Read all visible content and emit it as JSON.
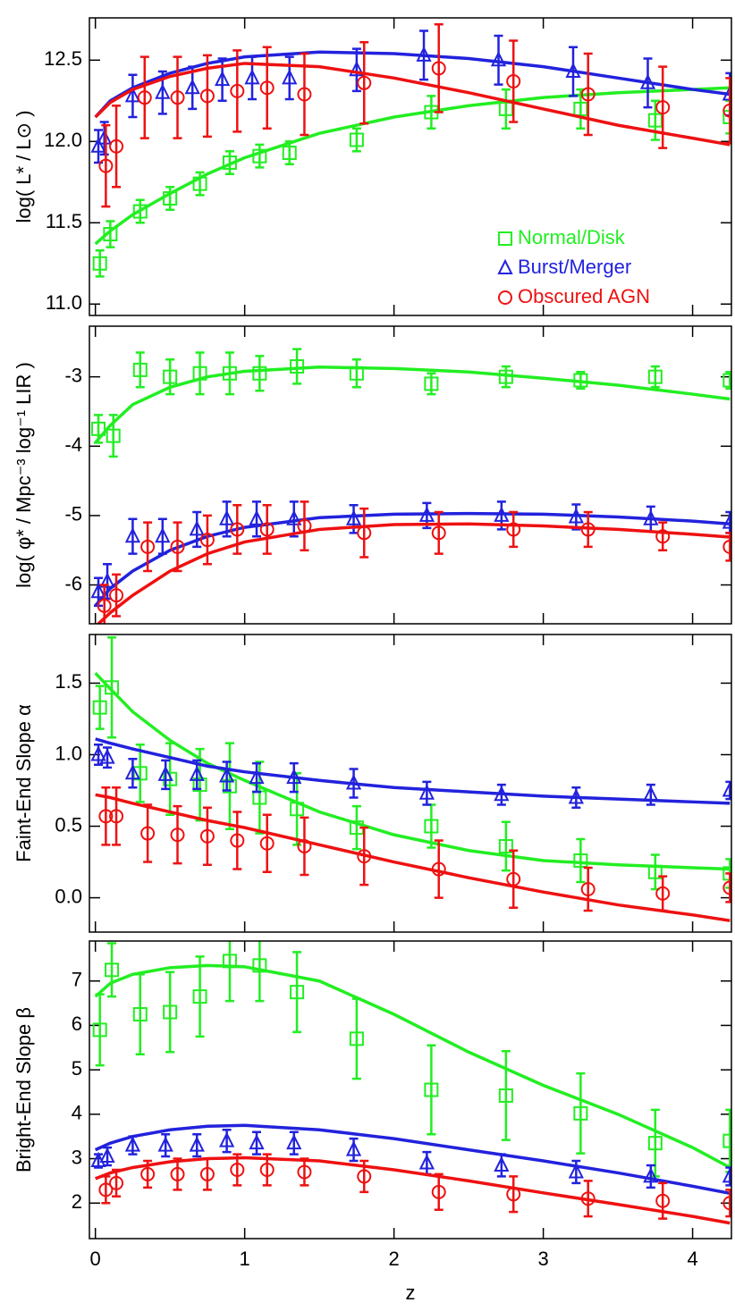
{
  "chart_data": [
    {
      "type": "scatter",
      "y_label": "log( L* / L⊙ )",
      "xlim": [
        -0.04,
        4.26
      ],
      "xticks": [
        0,
        1,
        2,
        3,
        4
      ],
      "ylim": [
        10.93,
        12.76
      ],
      "yticks": [
        {
          "value": 11,
          "label": "11.0"
        },
        11.5,
        {
          "value": 12,
          "label": "12.0"
        },
        12.5
      ],
      "legend": "lower right",
      "fit_x": [
        0,
        0.1,
        0.25,
        0.5,
        0.75,
        1,
        1.5,
        2,
        2.5,
        3,
        3.5,
        4,
        4.25
      ],
      "series": [
        {
          "name": "Normal/Disk",
          "color": "#22ee22",
          "marker": "square",
          "x": [
            0.03,
            0.1,
            0.3,
            0.5,
            0.7,
            0.9,
            1.1,
            1.3,
            1.75,
            2.25,
            2.75,
            3.25,
            3.75,
            4.25
          ],
          "values": [
            11.25,
            11.43,
            11.57,
            11.65,
            11.74,
            11.87,
            11.91,
            11.93,
            12.01,
            12.18,
            12.2,
            12.2,
            12.13,
            12.15
          ],
          "errors": [
            0.08,
            0.08,
            0.07,
            0.07,
            0.07,
            0.07,
            0.07,
            0.07,
            0.07,
            0.1,
            0.12,
            0.12,
            0.12,
            0.1
          ],
          "fit": [
            11.37,
            11.45,
            11.55,
            11.68,
            11.8,
            11.9,
            12.05,
            12.15,
            12.22,
            12.27,
            12.3,
            12.32,
            12.33
          ]
        },
        {
          "name": "Burst/Merger",
          "color": "#2222dd",
          "marker": "triangle",
          "x": [
            0.02,
            0.06,
            0.25,
            0.45,
            0.65,
            0.85,
            1.05,
            1.3,
            1.75,
            2.2,
            2.7,
            3.2,
            3.7,
            4.25
          ],
          "values": [
            11.97,
            12.02,
            12.28,
            12.3,
            12.33,
            12.38,
            12.39,
            12.39,
            12.44,
            12.53,
            12.5,
            12.43,
            12.36,
            12.29
          ],
          "errors": [
            0.1,
            0.1,
            0.13,
            0.13,
            0.13,
            0.13,
            0.13,
            0.13,
            0.13,
            0.15,
            0.15,
            0.15,
            0.15,
            0.13
          ],
          "fit": [
            12.15,
            12.25,
            12.33,
            12.42,
            12.48,
            12.52,
            12.55,
            12.54,
            12.51,
            12.46,
            12.39,
            12.32,
            12.29
          ]
        },
        {
          "name": "Obscured AGN",
          "color": "#ee1111",
          "marker": "circle",
          "x": [
            0.07,
            0.14,
            0.33,
            0.55,
            0.75,
            0.95,
            1.15,
            1.4,
            1.8,
            2.3,
            2.8,
            3.3,
            3.8,
            4.25
          ],
          "values": [
            11.85,
            11.97,
            12.27,
            12.27,
            12.28,
            12.31,
            12.33,
            12.29,
            12.36,
            12.45,
            12.37,
            12.29,
            12.21,
            12.19
          ],
          "errors": [
            0.25,
            0.25,
            0.25,
            0.25,
            0.25,
            0.25,
            0.25,
            0.25,
            0.25,
            0.27,
            0.25,
            0.25,
            0.25,
            0.2
          ],
          "fit": [
            12.15,
            12.24,
            12.32,
            12.4,
            12.45,
            12.48,
            12.46,
            12.39,
            12.3,
            12.2,
            12.1,
            12.02,
            11.98
          ]
        }
      ]
    },
    {
      "type": "scatter",
      "y_label": "log( φ* / Mpc⁻³ log⁻¹ LIR )",
      "xlim": [
        -0.04,
        4.26
      ],
      "xticks": [
        0,
        1,
        2,
        3,
        4
      ],
      "ylim": [
        -6.56,
        -2.27
      ],
      "yticks": [
        -6,
        -5,
        -4,
        -3
      ],
      "fit_x": [
        0,
        0.1,
        0.25,
        0.5,
        0.75,
        1,
        1.5,
        2,
        2.5,
        3,
        3.5,
        4,
        4.25
      ],
      "series": [
        {
          "color": "#22ee22",
          "marker": "square",
          "x": [
            0.02,
            0.12,
            0.3,
            0.5,
            0.7,
            0.9,
            1.1,
            1.35,
            1.75,
            2.25,
            2.75,
            3.25,
            3.75,
            4.25
          ],
          "values": [
            -3.75,
            -3.85,
            -2.9,
            -3,
            -2.95,
            -2.95,
            -2.95,
            -2.85,
            -2.95,
            -3.1,
            -3,
            -3.05,
            -3,
            -3.05
          ],
          "errors": [
            0.2,
            0.3,
            0.25,
            0.25,
            0.3,
            0.3,
            0.25,
            0.25,
            0.2,
            0.15,
            0.15,
            0.12,
            0.15,
            0.12
          ],
          "fit": [
            -3.95,
            -3.7,
            -3.4,
            -3.15,
            -3,
            -2.92,
            -2.86,
            -2.88,
            -2.93,
            -3.02,
            -3.12,
            -3.25,
            -3.32
          ]
        },
        {
          "color": "#2222dd",
          "marker": "triangle",
          "x": [
            0.02,
            0.08,
            0.25,
            0.45,
            0.68,
            0.88,
            1.08,
            1.33,
            1.73,
            2.22,
            2.72,
            3.22,
            3.72,
            4.25
          ],
          "values": [
            -6.1,
            -5.95,
            -5.3,
            -5.3,
            -5.2,
            -5.05,
            -5.05,
            -5.05,
            -5.05,
            -5,
            -5,
            -5.02,
            -5.05,
            -5.1
          ],
          "errors": [
            0.2,
            0.25,
            0.25,
            0.25,
            0.25,
            0.25,
            0.25,
            0.25,
            0.2,
            0.18,
            0.2,
            0.18,
            0.18,
            0.15
          ],
          "fit": [
            -6.3,
            -6.05,
            -5.8,
            -5.5,
            -5.3,
            -5.17,
            -5.03,
            -4.98,
            -4.97,
            -4.98,
            -5.02,
            -5.08,
            -5.12
          ]
        },
        {
          "color": "#ee1111",
          "marker": "circle",
          "x": [
            0.06,
            0.14,
            0.35,
            0.55,
            0.75,
            0.95,
            1.15,
            1.4,
            1.8,
            2.3,
            2.8,
            3.3,
            3.8,
            4.25
          ],
          "values": [
            -6.3,
            -6.15,
            -5.45,
            -5.45,
            -5.35,
            -5.2,
            -5.2,
            -5.15,
            -5.25,
            -5.25,
            -5.2,
            -5.2,
            -5.3,
            -5.45
          ],
          "errors": [
            0.3,
            0.3,
            0.35,
            0.35,
            0.35,
            0.35,
            0.35,
            0.35,
            0.35,
            0.3,
            0.25,
            0.25,
            0.2,
            0.2
          ],
          "fit": [
            -6.6,
            -6.4,
            -6.15,
            -5.8,
            -5.55,
            -5.38,
            -5.2,
            -5.13,
            -5.12,
            -5.15,
            -5.2,
            -5.27,
            -5.31
          ]
        }
      ]
    },
    {
      "type": "scatter",
      "y_label": "Faint-End Slope α",
      "xlim": [
        -0.04,
        4.26
      ],
      "xticks": [
        0,
        1,
        2,
        3,
        4
      ],
      "ylim": [
        -0.24,
        1.84
      ],
      "yticks": [
        {
          "value": 0,
          "label": "0.0"
        },
        0.5,
        {
          "value": 1,
          "label": "1.0"
        },
        1.5
      ],
      "fit_x": [
        0,
        0.1,
        0.25,
        0.5,
        0.75,
        1,
        1.5,
        2,
        2.5,
        3,
        3.5,
        4,
        4.25
      ],
      "series": [
        {
          "color": "#22ee22",
          "marker": "square",
          "x": [
            0.03,
            0.11,
            0.3,
            0.5,
            0.7,
            0.9,
            1.1,
            1.35,
            1.75,
            2.25,
            2.75,
            3.25,
            3.75,
            4.25
          ],
          "values": [
            1.33,
            1.47,
            0.87,
            0.83,
            0.79,
            0.78,
            0.7,
            0.62,
            0.49,
            0.5,
            0.36,
            0.26,
            0.18,
            0.17
          ],
          "errors": [
            0.15,
            0.35,
            0.2,
            0.25,
            0.25,
            0.3,
            0.25,
            0.25,
            0.15,
            0.15,
            0.17,
            0.15,
            0.12,
            0.1
          ],
          "fit": [
            1.57,
            1.46,
            1.3,
            1.1,
            0.94,
            0.82,
            0.6,
            0.44,
            0.33,
            0.26,
            0.23,
            0.21,
            0.2
          ]
        },
        {
          "color": "#2222dd",
          "marker": "triangle",
          "x": [
            0.02,
            0.08,
            0.25,
            0.47,
            0.68,
            0.88,
            1.08,
            1.33,
            1.73,
            2.22,
            2.72,
            3.22,
            3.72,
            4.25
          ],
          "values": [
            1,
            0.98,
            0.87,
            0.86,
            0.86,
            0.85,
            0.84,
            0.84,
            0.8,
            0.73,
            0.72,
            0.7,
            0.72,
            0.75
          ],
          "errors": [
            0.07,
            0.07,
            0.1,
            0.1,
            0.1,
            0.1,
            0.1,
            0.1,
            0.1,
            0.08,
            0.07,
            0.07,
            0.07,
            0.06
          ],
          "fit": [
            1.11,
            1.08,
            1.04,
            0.98,
            0.92,
            0.88,
            0.82,
            0.77,
            0.74,
            0.71,
            0.69,
            0.67,
            0.66
          ]
        },
        {
          "color": "#ee1111",
          "marker": "circle",
          "x": [
            0.07,
            0.14,
            0.35,
            0.55,
            0.75,
            0.95,
            1.15,
            1.4,
            1.8,
            2.3,
            2.8,
            3.3,
            3.8,
            4.25
          ],
          "values": [
            0.57,
            0.57,
            0.45,
            0.44,
            0.43,
            0.4,
            0.38,
            0.36,
            0.29,
            0.2,
            0.13,
            0.06,
            0.03,
            0.07
          ],
          "errors": [
            0.2,
            0.2,
            0.2,
            0.2,
            0.2,
            0.2,
            0.2,
            0.2,
            0.2,
            0.2,
            0.2,
            0.15,
            0.12,
            0.1
          ],
          "fit": [
            0.72,
            0.7,
            0.66,
            0.6,
            0.54,
            0.49,
            0.37,
            0.25,
            0.14,
            0.04,
            -0.05,
            -0.12,
            -0.16
          ]
        }
      ]
    },
    {
      "type": "scatter",
      "y_label": "Bright-End Slope β",
      "x_label": "z",
      "xlim": [
        -0.04,
        4.26
      ],
      "xticks": [
        0,
        1,
        2,
        3,
        4
      ],
      "ylim": [
        1.2,
        7.9
      ],
      "yticks": [
        2,
        3,
        4,
        5,
        6,
        7
      ],
      "fit_x": [
        0,
        0.1,
        0.25,
        0.5,
        0.75,
        1,
        1.5,
        2,
        2.5,
        3,
        3.5,
        4,
        4.25
      ],
      "series": [
        {
          "color": "#22ee22",
          "marker": "square",
          "x": [
            0.03,
            0.11,
            0.3,
            0.5,
            0.7,
            0.9,
            1.1,
            1.35,
            1.75,
            2.25,
            2.75,
            3.25,
            3.75,
            4.25
          ],
          "values": [
            5.9,
            7.25,
            6.25,
            6.3,
            6.65,
            7.45,
            7.35,
            6.75,
            5.7,
            4.55,
            4.42,
            4.02,
            3.35,
            3.4
          ],
          "errors": [
            0.8,
            0.6,
            0.9,
            0.9,
            0.9,
            0.9,
            0.8,
            0.9,
            0.9,
            1,
            1,
            0.9,
            0.75,
            0.7
          ],
          "fit": [
            6.65,
            6.95,
            7.15,
            7.3,
            7.35,
            7.32,
            7,
            6.25,
            5.4,
            4.65,
            4,
            3.25,
            2.8
          ]
        },
        {
          "color": "#2222dd",
          "marker": "triangle",
          "x": [
            0.02,
            0.08,
            0.25,
            0.47,
            0.68,
            0.88,
            1.08,
            1.33,
            1.73,
            2.22,
            2.72,
            3.22,
            3.72,
            4.25
          ],
          "values": [
            2.95,
            3.05,
            3.3,
            3.3,
            3.3,
            3.4,
            3.35,
            3.35,
            3.2,
            2.9,
            2.85,
            2.7,
            2.6,
            2.6
          ],
          "errors": [
            0.15,
            0.2,
            0.2,
            0.25,
            0.25,
            0.25,
            0.25,
            0.25,
            0.25,
            0.25,
            0.25,
            0.25,
            0.25,
            0.2
          ],
          "fit": [
            3.2,
            3.35,
            3.5,
            3.65,
            3.73,
            3.75,
            3.65,
            3.45,
            3.2,
            2.95,
            2.68,
            2.38,
            2.22
          ]
        },
        {
          "color": "#ee1111",
          "marker": "circle",
          "x": [
            0.07,
            0.14,
            0.35,
            0.55,
            0.75,
            0.95,
            1.15,
            1.4,
            1.8,
            2.3,
            2.8,
            3.3,
            3.8,
            4.25
          ],
          "values": [
            2.3,
            2.45,
            2.65,
            2.65,
            2.65,
            2.75,
            2.75,
            2.7,
            2.6,
            2.25,
            2.2,
            2.1,
            2.05,
            2
          ],
          "errors": [
            0.3,
            0.3,
            0.3,
            0.35,
            0.35,
            0.35,
            0.35,
            0.3,
            0.35,
            0.4,
            0.4,
            0.4,
            0.4,
            0.3
          ],
          "fit": [
            2.55,
            2.68,
            2.8,
            2.93,
            3,
            3.02,
            2.95,
            2.75,
            2.5,
            2.23,
            1.97,
            1.7,
            1.55
          ]
        }
      ]
    }
  ]
}
